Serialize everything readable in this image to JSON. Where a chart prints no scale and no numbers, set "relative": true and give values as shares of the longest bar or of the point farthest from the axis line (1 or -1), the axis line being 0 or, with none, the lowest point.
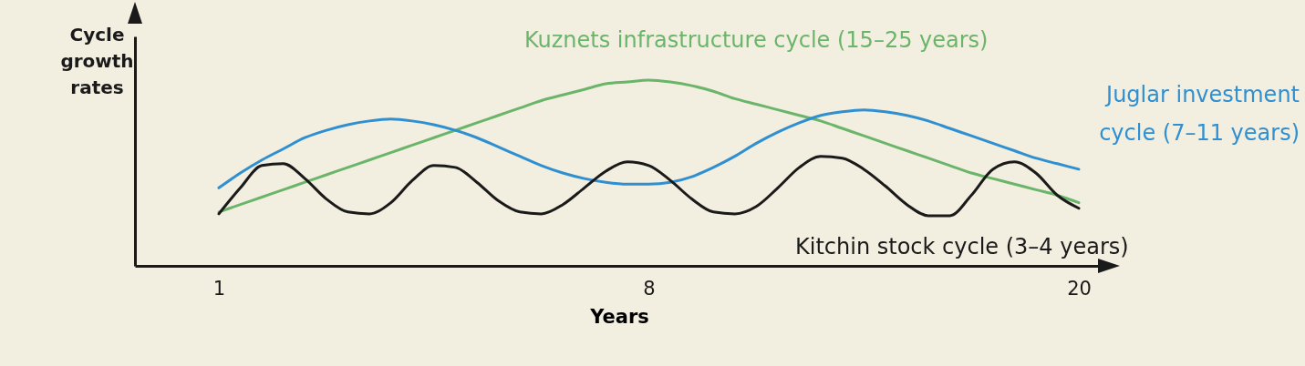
{
  "chart_data": {
    "type": "line",
    "relative": true,
    "xlabel": "Years",
    "ylabel": "Cycle growth rates",
    "legend": false,
    "grid": false,
    "marker": "none",
    "line_style": "solid",
    "categories": [
      "1",
      null,
      null,
      null,
      null,
      null,
      null,
      null,
      null,
      null,
      null,
      null,
      null,
      null,
      null,
      null,
      null,
      null,
      null,
      null,
      "8",
      null,
      null,
      null,
      null,
      null,
      null,
      null,
      null,
      null,
      null,
      null,
      null,
      null,
      null,
      null,
      null,
      null,
      null,
      null,
      "20"
    ],
    "series": [
      {
        "name": "Kuznets infrastructure cycle (15–25 years)",
        "color": "#6ab56a",
        "values": [
          0.29,
          0.33,
          0.37,
          0.41,
          0.45,
          0.49,
          0.53,
          0.57,
          0.61,
          0.65,
          0.69,
          0.73,
          0.77,
          0.81,
          0.85,
          0.89,
          0.92,
          0.95,
          0.98,
          0.99,
          1.0,
          0.99,
          0.97,
          0.94,
          0.9,
          0.87,
          0.84,
          0.81,
          0.78,
          0.74,
          0.7,
          0.66,
          0.62,
          0.58,
          0.54,
          0.5,
          0.47,
          0.44,
          0.41,
          0.38,
          0.34
        ]
      },
      {
        "name": "Juglar investment cycle (7–11 years)",
        "color": "#2f8fd0",
        "values": [
          0.42,
          0.5,
          0.57,
          0.63,
          0.69,
          0.73,
          0.76,
          0.78,
          0.79,
          0.78,
          0.76,
          0.73,
          0.69,
          0.64,
          0.59,
          0.54,
          0.5,
          0.47,
          0.45,
          0.44,
          0.44,
          0.45,
          0.48,
          0.53,
          0.59,
          0.66,
          0.72,
          0.77,
          0.81,
          0.83,
          0.84,
          0.83,
          0.81,
          0.78,
          0.74,
          0.7,
          0.66,
          0.62,
          0.58,
          0.55,
          0.52
        ]
      },
      {
        "name": "Kitchin stock cycle (3–4 years)",
        "color": "#1a1a1a",
        "values": [
          0.28,
          0.42,
          0.54,
          0.55,
          0.47,
          0.36,
          0.29,
          0.28,
          0.34,
          0.46,
          0.54,
          0.53,
          0.45,
          0.35,
          0.29,
          0.28,
          0.33,
          0.42,
          0.51,
          0.56,
          0.54,
          0.46,
          0.36,
          0.29,
          0.28,
          0.32,
          0.42,
          0.53,
          0.59,
          0.58,
          0.52,
          0.43,
          0.33,
          0.27,
          0.27,
          0.38,
          0.52,
          0.56,
          0.5,
          0.38,
          0.31
        ]
      }
    ]
  }
}
